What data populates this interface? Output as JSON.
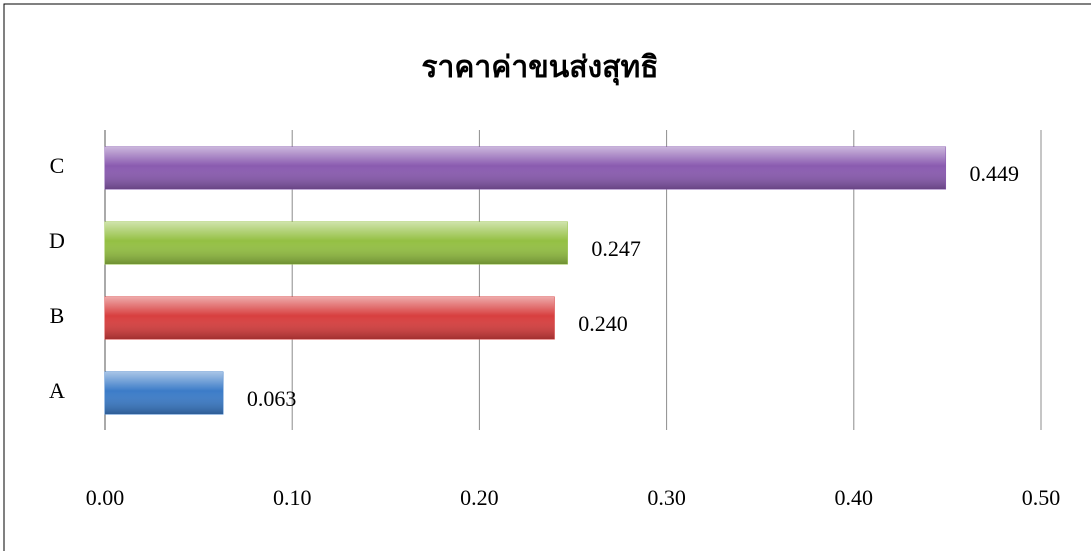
{
  "chart_data": {
    "type": "bar",
    "orientation": "horizontal",
    "title": "ราคาค่าขนส่งสุทธิ",
    "categories": [
      "C",
      "D",
      "B",
      "A"
    ],
    "values": [
      0.449,
      0.247,
      0.24,
      0.063
    ],
    "value_labels": [
      "0.449",
      "0.247",
      "0.240",
      "0.063"
    ],
    "colors": [
      "#8a5bb0",
      "#94c043",
      "#d83f3f",
      "#3c7cc8"
    ],
    "xlim": [
      0,
      0.5
    ],
    "xticks": [
      {
        "value": 0,
        "label": "0.00"
      },
      {
        "value": 0.1,
        "label": "0.10"
      },
      {
        "value": 0.2,
        "label": "0.20"
      },
      {
        "value": 0.3,
        "label": "0.30"
      },
      {
        "value": 0.4,
        "label": "0.40"
      },
      {
        "value": 0.5,
        "label": "0.50"
      }
    ],
    "grid": true
  }
}
